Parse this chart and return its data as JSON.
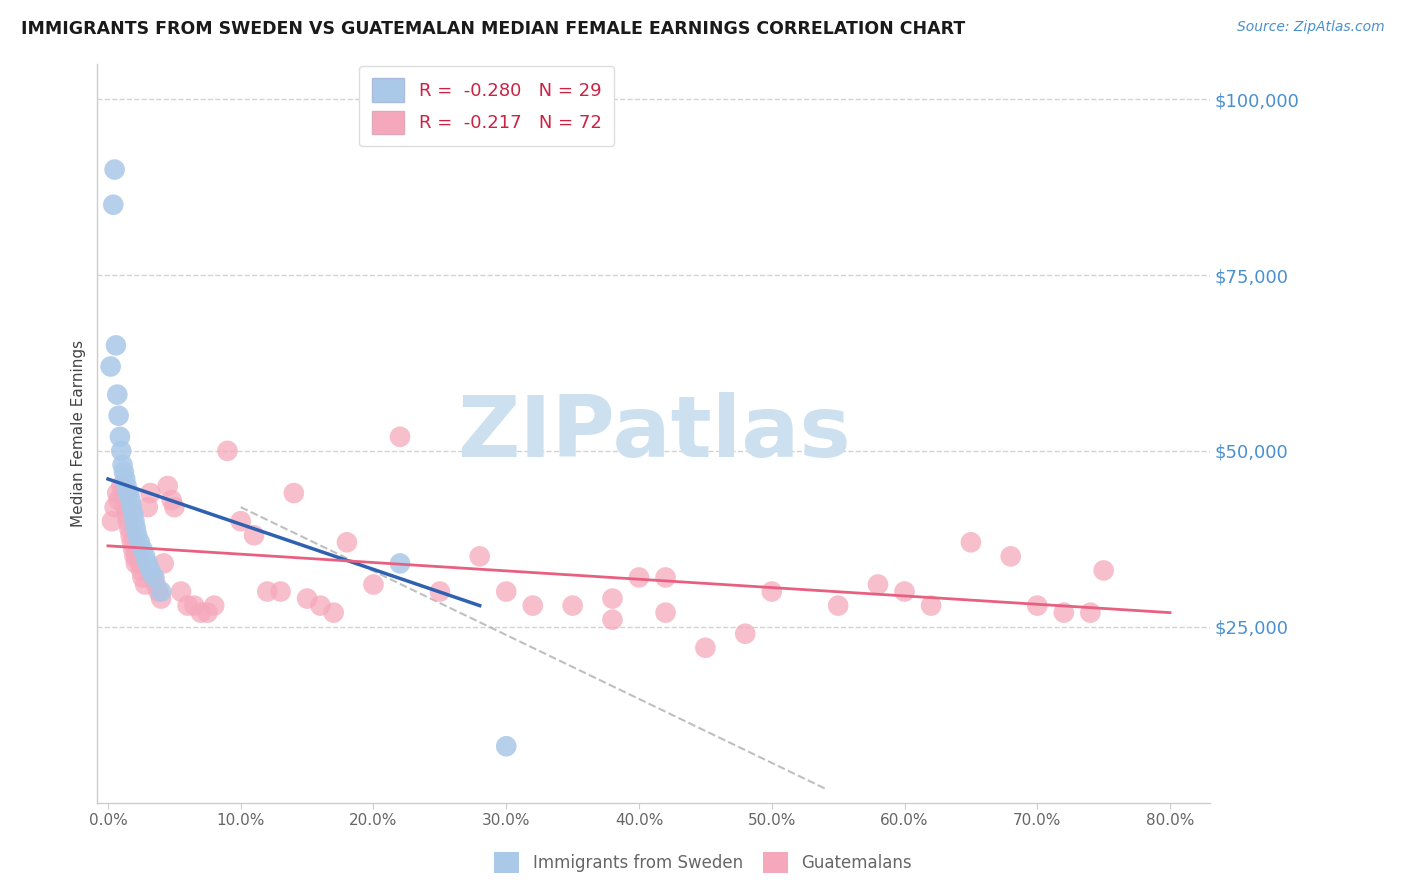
{
  "title": "IMMIGRANTS FROM SWEDEN VS GUATEMALAN MEDIAN FEMALE EARNINGS CORRELATION CHART",
  "source": "Source: ZipAtlas.com",
  "ylabel": "Median Female Earnings",
  "yaxis_labels": [
    "$25,000",
    "$50,000",
    "$75,000",
    "$100,000"
  ],
  "yaxis_values": [
    25000,
    50000,
    75000,
    100000
  ],
  "xaxis_labels": [
    "0.0%",
    "10.0%",
    "20.0%",
    "30.0%",
    "40.0%",
    "50.0%",
    "60.0%",
    "70.0%",
    "80.0%"
  ],
  "xaxis_values": [
    0.0,
    0.1,
    0.2,
    0.3,
    0.4,
    0.5,
    0.6,
    0.7,
    0.8
  ],
  "ylim": [
    0,
    105000
  ],
  "xlim": [
    -0.008,
    0.83
  ],
  "legend_sweden": "R =  -0.280   N = 29",
  "legend_guatemalan": "R =  -0.217   N = 72",
  "legend_label_sweden": "Immigrants from Sweden",
  "legend_label_guatemalan": "Guatemalans",
  "sweden_color": "#aac8e8",
  "guatemalan_color": "#f5a8bb",
  "sweden_line_color": "#3060b0",
  "guatemalan_line_color": "#e86080",
  "title_color": "#1a1a1a",
  "yaxis_label_color": "#4a90d0",
  "source_color": "#4a90d0",
  "watermark_color": "#cce0f0",
  "background_color": "#ffffff",
  "grid_color": "#c8c8c8",
  "sweden_x": [
    0.002,
    0.004,
    0.005,
    0.006,
    0.007,
    0.008,
    0.009,
    0.01,
    0.011,
    0.012,
    0.013,
    0.014,
    0.015,
    0.016,
    0.017,
    0.018,
    0.019,
    0.02,
    0.021,
    0.022,
    0.024,
    0.026,
    0.028,
    0.03,
    0.032,
    0.035,
    0.04,
    0.22,
    0.3
  ],
  "sweden_y": [
    62000,
    85000,
    90000,
    65000,
    58000,
    55000,
    52000,
    50000,
    48000,
    47000,
    46000,
    45000,
    44000,
    44000,
    43000,
    42000,
    41000,
    40000,
    39000,
    38000,
    37000,
    36000,
    35000,
    34000,
    33000,
    32000,
    30000,
    34000,
    8000
  ],
  "guatemalan_x": [
    0.003,
    0.005,
    0.007,
    0.008,
    0.01,
    0.011,
    0.012,
    0.013,
    0.014,
    0.015,
    0.016,
    0.017,
    0.018,
    0.019,
    0.02,
    0.021,
    0.022,
    0.024,
    0.025,
    0.026,
    0.028,
    0.03,
    0.032,
    0.034,
    0.036,
    0.038,
    0.04,
    0.042,
    0.045,
    0.048,
    0.05,
    0.055,
    0.06,
    0.065,
    0.07,
    0.075,
    0.08,
    0.09,
    0.1,
    0.11,
    0.12,
    0.13,
    0.14,
    0.15,
    0.16,
    0.17,
    0.18,
    0.2,
    0.22,
    0.25,
    0.28,
    0.3,
    0.32,
    0.35,
    0.38,
    0.4,
    0.42,
    0.45,
    0.48,
    0.5,
    0.55,
    0.58,
    0.6,
    0.62,
    0.65,
    0.68,
    0.7,
    0.72,
    0.74,
    0.75,
    0.38,
    0.42
  ],
  "guatemalan_y": [
    40000,
    42000,
    44000,
    43000,
    45000,
    44000,
    43000,
    42000,
    41000,
    40000,
    39000,
    38000,
    37000,
    36000,
    35000,
    34000,
    35000,
    34000,
    33000,
    32000,
    31000,
    42000,
    44000,
    32000,
    31000,
    30000,
    29000,
    34000,
    45000,
    43000,
    42000,
    30000,
    28000,
    28000,
    27000,
    27000,
    28000,
    50000,
    40000,
    38000,
    30000,
    30000,
    44000,
    29000,
    28000,
    27000,
    37000,
    31000,
    52000,
    30000,
    35000,
    30000,
    28000,
    28000,
    26000,
    32000,
    32000,
    22000,
    24000,
    30000,
    28000,
    31000,
    30000,
    28000,
    37000,
    35000,
    28000,
    27000,
    27000,
    33000,
    29000,
    27000
  ],
  "sweden_line_x": [
    0.0,
    0.28
  ],
  "sweden_line_y": [
    46000,
    28000
  ],
  "guatemalan_line_x": [
    0.0,
    0.8
  ],
  "guatemalan_line_y": [
    36500,
    27000
  ],
  "diag_line_x": [
    0.1,
    0.54
  ],
  "diag_line_y": [
    42000,
    2000
  ]
}
